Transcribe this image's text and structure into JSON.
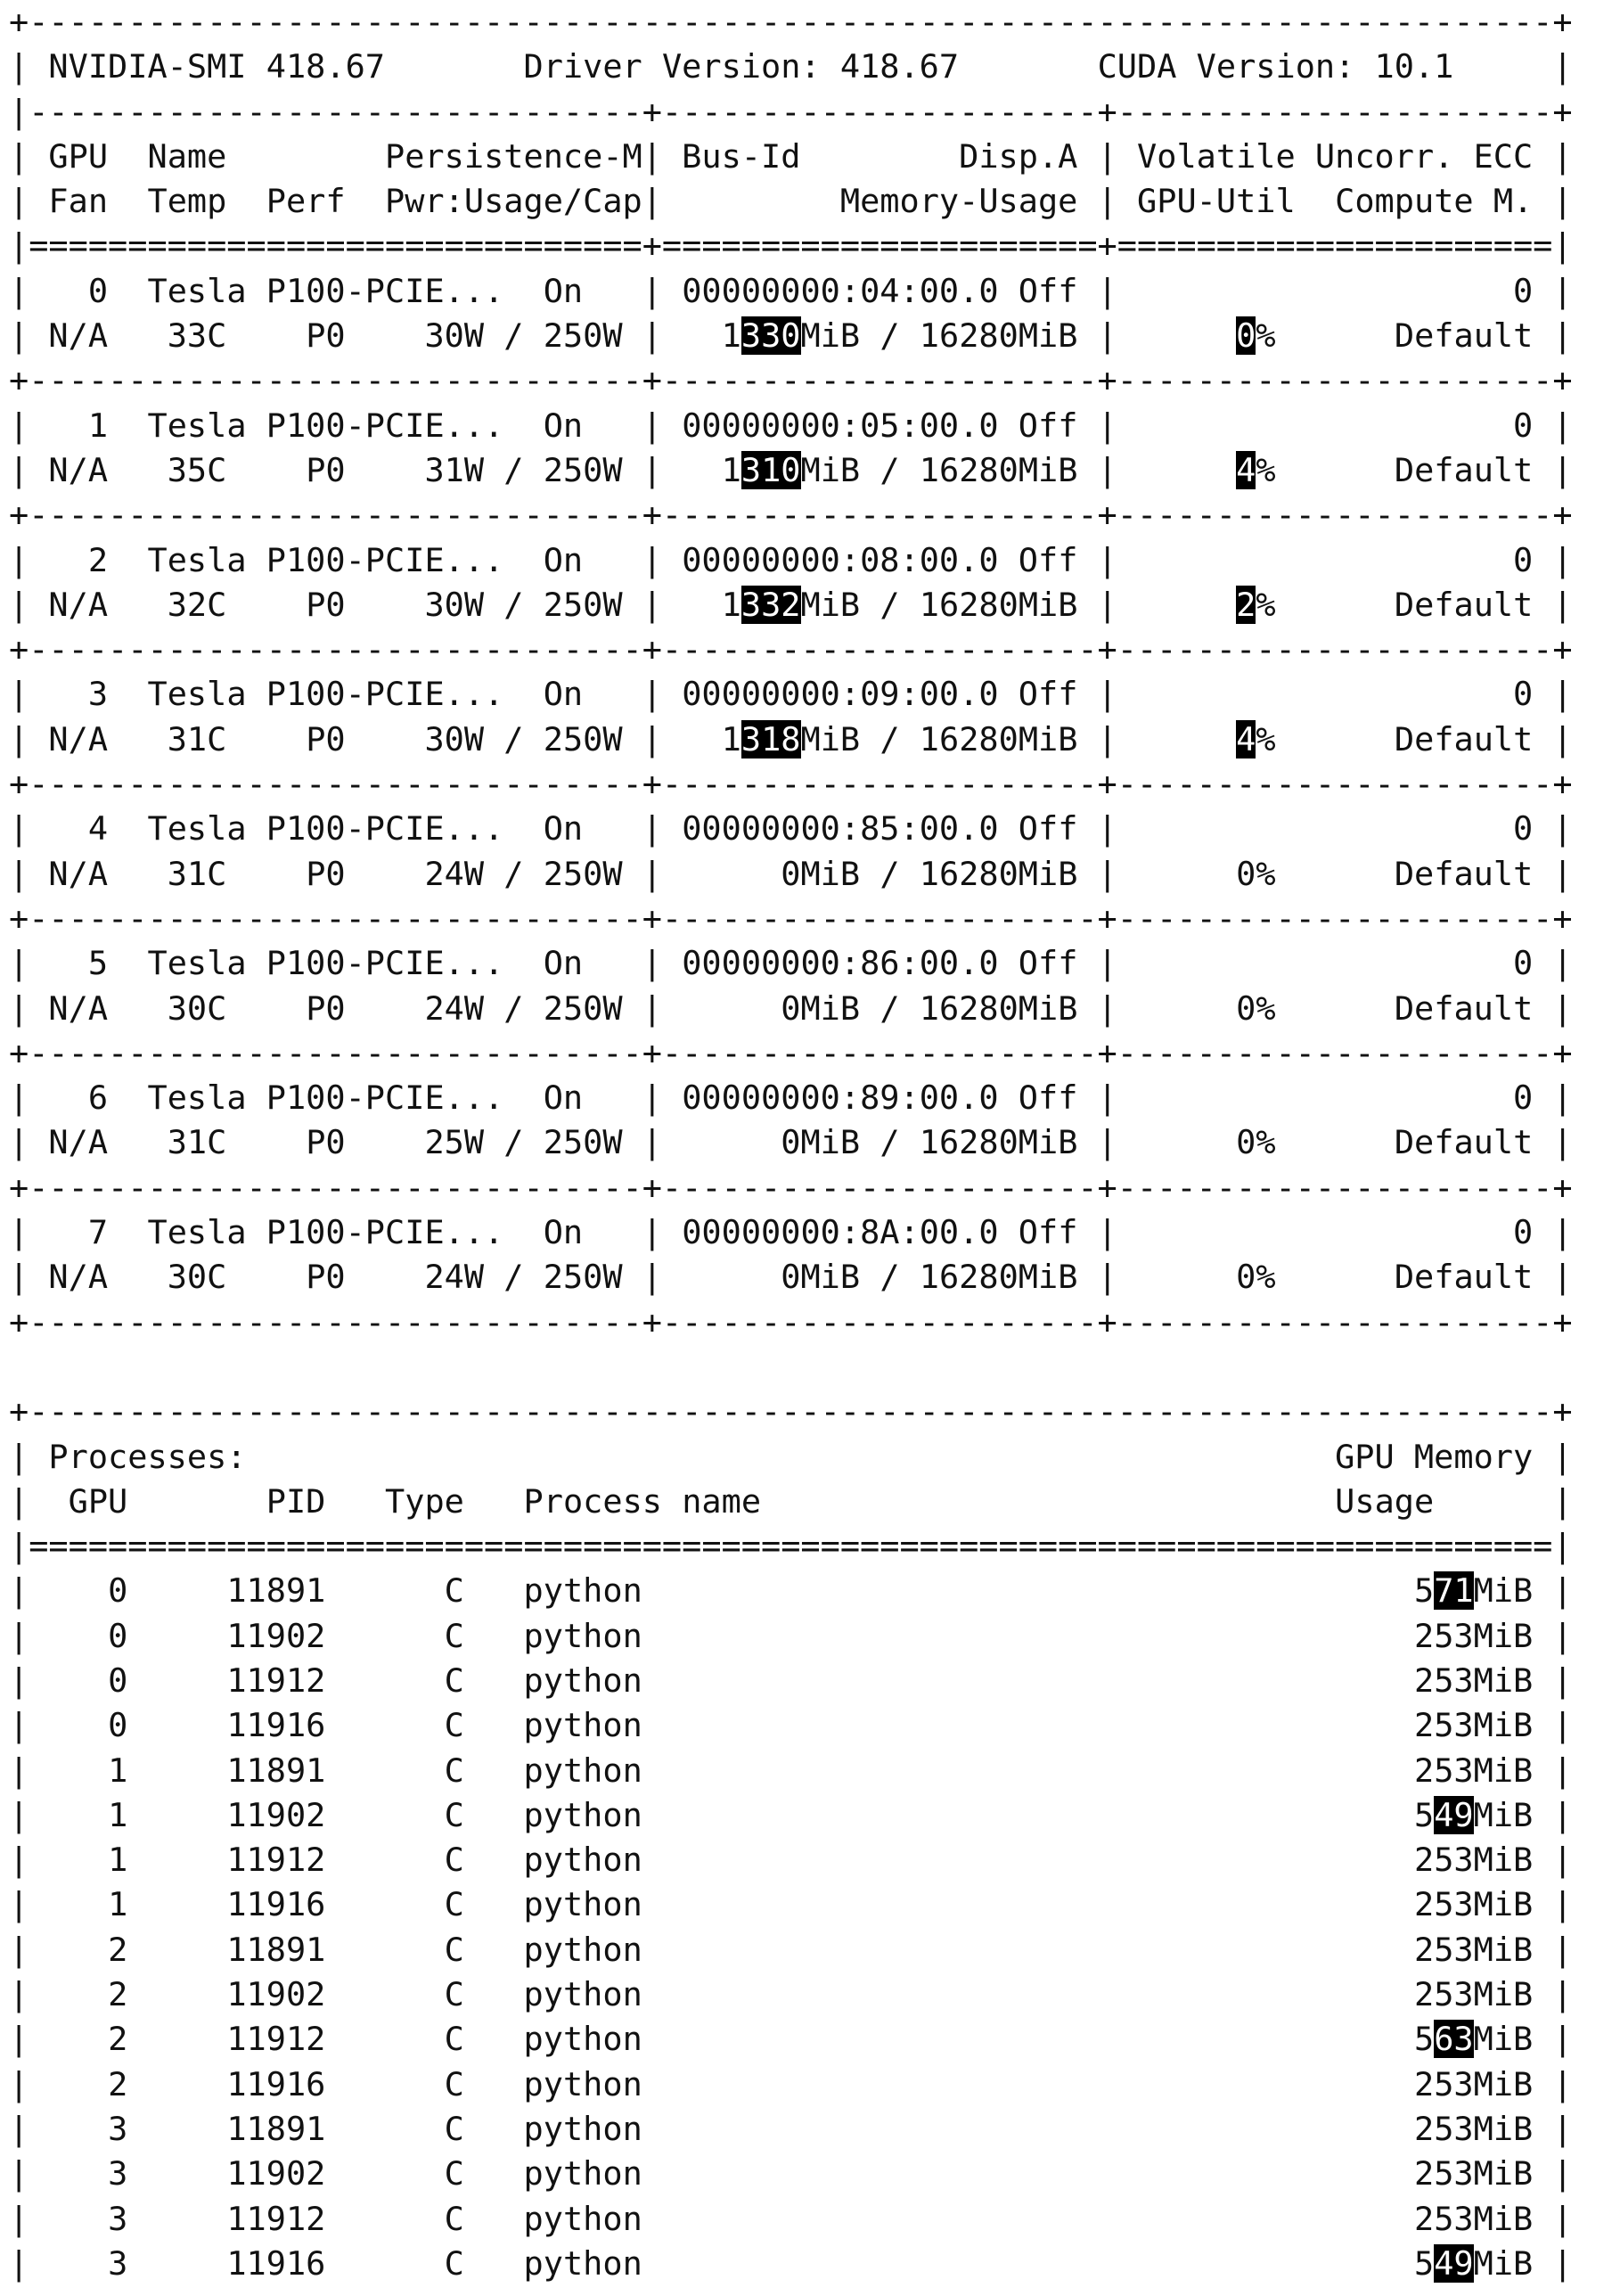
{
  "header": {
    "smi_label": "NVIDIA-SMI 418.67",
    "driver_label": "Driver Version: 418.67",
    "cuda_label": "CUDA Version: 10.1"
  },
  "columns": {
    "row1": {
      "gpu": "GPU",
      "name": "Name",
      "persistence": "Persistence-M",
      "bus_id": "Bus-Id",
      "disp": "Disp.A",
      "volatile_ecc": "Volatile Uncorr. ECC"
    },
    "row2": {
      "fan": "Fan",
      "temp": "Temp",
      "perf": "Perf",
      "power": "Pwr:Usage/Cap",
      "memory": "Memory-Usage",
      "util": "GPU-Util",
      "compute": "Compute M."
    }
  },
  "gpus": [
    {
      "index": "0",
      "name": "Tesla P100-PCIE...",
      "persistence": "On",
      "bus_id": "00000000:04:00.0",
      "disp": "Off",
      "ecc": "0",
      "fan": "N/A",
      "temp": "33C",
      "perf": "P0",
      "power_usage": "30W",
      "power_cap": "250W",
      "memory_used": "1330MiB",
      "memory_total": "16280MiB",
      "util": "0%",
      "compute": "Default",
      "selected": {
        "memory_used": "330",
        "util": "0"
      }
    },
    {
      "index": "1",
      "name": "Tesla P100-PCIE...",
      "persistence": "On",
      "bus_id": "00000000:05:00.0",
      "disp": "Off",
      "ecc": "0",
      "fan": "N/A",
      "temp": "35C",
      "perf": "P0",
      "power_usage": "31W",
      "power_cap": "250W",
      "memory_used": "1310MiB",
      "memory_total": "16280MiB",
      "util": "4%",
      "compute": "Default",
      "selected": {
        "memory_used": "310",
        "util": "4"
      }
    },
    {
      "index": "2",
      "name": "Tesla P100-PCIE...",
      "persistence": "On",
      "bus_id": "00000000:08:00.0",
      "disp": "Off",
      "ecc": "0",
      "fan": "N/A",
      "temp": "32C",
      "perf": "P0",
      "power_usage": "30W",
      "power_cap": "250W",
      "memory_used": "1332MiB",
      "memory_total": "16280MiB",
      "util": "2%",
      "compute": "Default",
      "selected": {
        "memory_used": "332",
        "util": "2"
      }
    },
    {
      "index": "3",
      "name": "Tesla P100-PCIE...",
      "persistence": "On",
      "bus_id": "00000000:09:00.0",
      "disp": "Off",
      "ecc": "0",
      "fan": "N/A",
      "temp": "31C",
      "perf": "P0",
      "power_usage": "30W",
      "power_cap": "250W",
      "memory_used": "1318MiB",
      "memory_total": "16280MiB",
      "util": "4%",
      "compute": "Default",
      "selected": {
        "memory_used": "318",
        "util": "4"
      }
    },
    {
      "index": "4",
      "name": "Tesla P100-PCIE...",
      "persistence": "On",
      "bus_id": "00000000:85:00.0",
      "disp": "Off",
      "ecc": "0",
      "fan": "N/A",
      "temp": "31C",
      "perf": "P0",
      "power_usage": "24W",
      "power_cap": "250W",
      "memory_used": "0MiB",
      "memory_total": "16280MiB",
      "util": "0%",
      "compute": "Default"
    },
    {
      "index": "5",
      "name": "Tesla P100-PCIE...",
      "persistence": "On",
      "bus_id": "00000000:86:00.0",
      "disp": "Off",
      "ecc": "0",
      "fan": "N/A",
      "temp": "30C",
      "perf": "P0",
      "power_usage": "24W",
      "power_cap": "250W",
      "memory_used": "0MiB",
      "memory_total": "16280MiB",
      "util": "0%",
      "compute": "Default"
    },
    {
      "index": "6",
      "name": "Tesla P100-PCIE...",
      "persistence": "On",
      "bus_id": "00000000:89:00.0",
      "disp": "Off",
      "ecc": "0",
      "fan": "N/A",
      "temp": "31C",
      "perf": "P0",
      "power_usage": "25W",
      "power_cap": "250W",
      "memory_used": "0MiB",
      "memory_total": "16280MiB",
      "util": "0%",
      "compute": "Default"
    },
    {
      "index": "7",
      "name": "Tesla P100-PCIE...",
      "persistence": "On",
      "bus_id": "00000000:8A:00.0",
      "disp": "Off",
      "ecc": "0",
      "fan": "N/A",
      "temp": "30C",
      "perf": "P0",
      "power_usage": "24W",
      "power_cap": "250W",
      "memory_used": "0MiB",
      "memory_total": "16280MiB",
      "util": "0%",
      "compute": "Default"
    }
  ],
  "processes": {
    "title": "Processes:",
    "memory_header": "GPU Memory",
    "columns": {
      "gpu": "GPU",
      "pid": "PID",
      "type": "Type",
      "name": "Process name",
      "usage": "Usage"
    },
    "rows": [
      {
        "gpu": "0",
        "pid": "11891",
        "type": "C",
        "name": "python",
        "usage": "571MiB",
        "selected": "71"
      },
      {
        "gpu": "0",
        "pid": "11902",
        "type": "C",
        "name": "python",
        "usage": "253MiB"
      },
      {
        "gpu": "0",
        "pid": "11912",
        "type": "C",
        "name": "python",
        "usage": "253MiB"
      },
      {
        "gpu": "0",
        "pid": "11916",
        "type": "C",
        "name": "python",
        "usage": "253MiB"
      },
      {
        "gpu": "1",
        "pid": "11891",
        "type": "C",
        "name": "python",
        "usage": "253MiB"
      },
      {
        "gpu": "1",
        "pid": "11902",
        "type": "C",
        "name": "python",
        "usage": "549MiB",
        "selected": "49"
      },
      {
        "gpu": "1",
        "pid": "11912",
        "type": "C",
        "name": "python",
        "usage": "253MiB"
      },
      {
        "gpu": "1",
        "pid": "11916",
        "type": "C",
        "name": "python",
        "usage": "253MiB"
      },
      {
        "gpu": "2",
        "pid": "11891",
        "type": "C",
        "name": "python",
        "usage": "253MiB"
      },
      {
        "gpu": "2",
        "pid": "11902",
        "type": "C",
        "name": "python",
        "usage": "253MiB"
      },
      {
        "gpu": "2",
        "pid": "11912",
        "type": "C",
        "name": "python",
        "usage": "563MiB",
        "selected": "63"
      },
      {
        "gpu": "2",
        "pid": "11916",
        "type": "C",
        "name": "python",
        "usage": "253MiB"
      },
      {
        "gpu": "3",
        "pid": "11891",
        "type": "C",
        "name": "python",
        "usage": "253MiB"
      },
      {
        "gpu": "3",
        "pid": "11902",
        "type": "C",
        "name": "python",
        "usage": "253MiB"
      },
      {
        "gpu": "3",
        "pid": "11912",
        "type": "C",
        "name": "python",
        "usage": "253MiB"
      },
      {
        "gpu": "3",
        "pid": "11916",
        "type": "C",
        "name": "python",
        "usage": "549MiB",
        "selected": "49"
      }
    ]
  },
  "colors": {
    "text": "#111111",
    "background": "#ffffff",
    "selection": "#000000"
  }
}
